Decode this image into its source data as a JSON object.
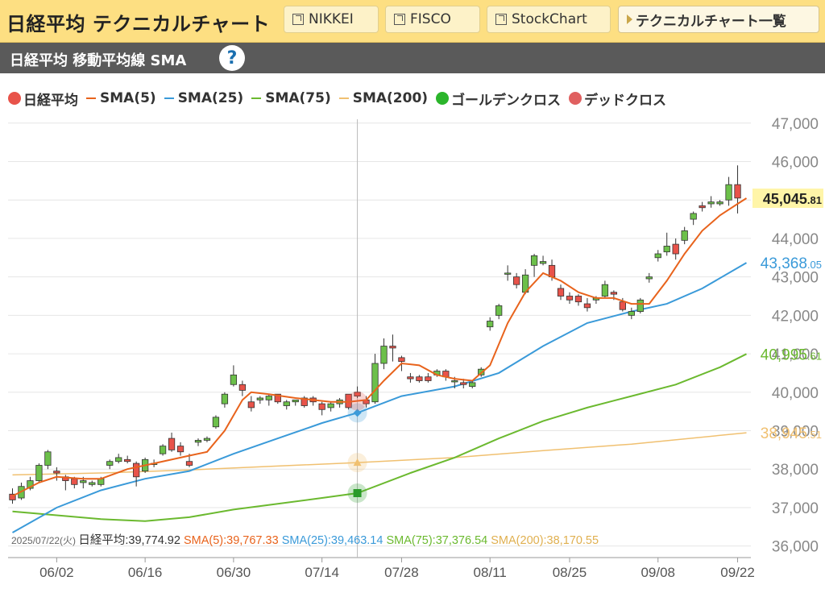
{
  "header": {
    "title": "日経平均 テクニカルチャート",
    "links": [
      "NIKKEI",
      "FISCO",
      "StockChart"
    ],
    "list_button": "テクニカルチャート一覧"
  },
  "subheader": {
    "title": "日経平均 移動平均線 SMA",
    "help": "?"
  },
  "legend": [
    {
      "label": "日経平均",
      "kind": "dot",
      "color": "#e8534a"
    },
    {
      "label": "SMA(5)",
      "kind": "line",
      "color": "#e8631c"
    },
    {
      "label": "SMA(25)",
      "kind": "line",
      "color": "#3a9ad9"
    },
    {
      "label": "SMA(75)",
      "kind": "line",
      "color": "#6bb92f"
    },
    {
      "label": "SMA(200)",
      "kind": "line",
      "color": "#f0c070"
    },
    {
      "label": "ゴールデンクロス",
      "kind": "dot",
      "color": "#2bb52b"
    },
    {
      "label": "デッドクロス",
      "kind": "dot",
      "color": "#e06060"
    }
  ],
  "tooltip": {
    "date": "2025/07/22(火)",
    "items": [
      {
        "label": "日経平均:39,774.92",
        "color": "#333333"
      },
      {
        "label": "SMA(5):39,767.33",
        "color": "#e8631c"
      },
      {
        "label": "SMA(25):39,463.14",
        "color": "#3a9ad9"
      },
      {
        "label": "SMA(75):37,376.54",
        "color": "#6bb92f"
      },
      {
        "label": "SMA(200):38,170.55",
        "color": "#e0b050"
      }
    ]
  },
  "chart_data": {
    "type": "candlestick",
    "ylim": [
      35700,
      47100
    ],
    "yticks": [
      "36,000",
      "37,000",
      "38,000",
      "39,000",
      "40,000",
      "41,000",
      "42,000",
      "43,000",
      "44,000",
      "45,000",
      "46,000",
      "47,000"
    ],
    "ytick_values": [
      36000,
      37000,
      38000,
      39000,
      40000,
      41000,
      42000,
      43000,
      44000,
      45000,
      46000,
      47000
    ],
    "xticks": [
      {
        "label": "06/02",
        "index": 5
      },
      {
        "label": "06/16",
        "index": 15
      },
      {
        "label": "06/30",
        "index": 25
      },
      {
        "label": "07/14",
        "index": 35
      },
      {
        "label": "07/28",
        "index": 44
      },
      {
        "label": "08/11",
        "index": 54
      },
      {
        "label": "08/25",
        "index": 63
      },
      {
        "label": "09/08",
        "index": 73
      },
      {
        "label": "09/22",
        "index": 82
      }
    ],
    "n_slots": 84,
    "candles": [
      [
        37350,
        37500,
        37100,
        37200
      ],
      [
        37250,
        37650,
        37200,
        37550
      ],
      [
        37500,
        37800,
        37450,
        37700
      ],
      [
        37700,
        38150,
        37650,
        38100
      ],
      [
        38100,
        38500,
        38000,
        38450
      ],
      [
        37950,
        38050,
        37700,
        37900
      ],
      [
        37800,
        37850,
        37450,
        37700
      ],
      [
        37750,
        37800,
        37500,
        37600
      ],
      [
        37650,
        37800,
        37500,
        37700
      ],
      [
        37600,
        37700,
        37550,
        37650
      ],
      [
        37600,
        37800,
        37550,
        37750
      ],
      [
        38100,
        38250,
        38000,
        38200
      ],
      [
        38200,
        38400,
        38150,
        38300
      ],
      [
        38250,
        38350,
        38150,
        38200
      ],
      [
        38150,
        38200,
        37550,
        37800
      ],
      [
        37950,
        38300,
        37900,
        38250
      ],
      [
        38150,
        38250,
        38050,
        38150
      ],
      [
        38400,
        38650,
        38350,
        38600
      ],
      [
        38800,
        38950,
        38450,
        38500
      ],
      [
        38600,
        38700,
        38350,
        38450
      ],
      [
        38200,
        38400,
        38050,
        38100
      ],
      [
        38700,
        38800,
        38600,
        38750
      ],
      [
        38750,
        38850,
        38700,
        38800
      ],
      [
        39100,
        39400,
        39050,
        39350
      ],
      [
        39700,
        40000,
        39600,
        39950
      ],
      [
        40200,
        40700,
        40150,
        40450
      ],
      [
        40200,
        40300,
        39900,
        40050
      ],
      [
        39750,
        39900,
        39500,
        39600
      ],
      [
        39800,
        39900,
        39700,
        39850
      ],
      [
        39800,
        39950,
        39650,
        39900
      ],
      [
        39950,
        39950,
        39700,
        39750
      ],
      [
        39650,
        39800,
        39550,
        39750
      ],
      [
        39750,
        39800,
        39650,
        39800
      ],
      [
        39850,
        39900,
        39600,
        39650
      ],
      [
        39850,
        39900,
        39650,
        39750
      ],
      [
        39700,
        39750,
        39400,
        39550
      ],
      [
        39600,
        39750,
        39500,
        39700
      ],
      [
        39700,
        39850,
        39600,
        39800
      ],
      [
        39950,
        39950,
        39550,
        39600
      ],
      [
        40000,
        40150,
        39850,
        39900
      ],
      [
        39800,
        39900,
        39600,
        39700
      ],
      [
        39750,
        41000,
        39700,
        40750
      ],
      [
        40750,
        41400,
        40600,
        41200
      ],
      [
        41200,
        41500,
        40800,
        41150
      ],
      [
        40900,
        40950,
        40550,
        40800
      ],
      [
        40400,
        40500,
        40250,
        40350
      ],
      [
        40400,
        40450,
        40250,
        40300
      ],
      [
        40400,
        40500,
        40250,
        40300
      ],
      [
        40450,
        40600,
        40400,
        40550
      ],
      [
        40550,
        40600,
        40300,
        40400
      ],
      [
        40300,
        40400,
        40100,
        40300
      ],
      [
        40250,
        40350,
        40100,
        40200
      ],
      [
        40150,
        40300,
        40100,
        40250
      ],
      [
        40450,
        40650,
        40400,
        40600
      ],
      [
        41700,
        41950,
        41600,
        41850
      ],
      [
        42000,
        42300,
        41900,
        42250
      ],
      [
        43100,
        43300,
        42900,
        43100
      ],
      [
        43000,
        43100,
        42700,
        42800
      ],
      [
        42600,
        43200,
        42550,
        43050
      ],
      [
        43300,
        43600,
        43000,
        43550
      ],
      [
        43350,
        43550,
        43300,
        43400
      ],
      [
        43300,
        43450,
        42900,
        43000
      ],
      [
        42700,
        42800,
        42400,
        42500
      ],
      [
        42500,
        42600,
        42300,
        42400
      ],
      [
        42500,
        42550,
        42250,
        42350
      ],
      [
        42300,
        42450,
        42100,
        42200
      ],
      [
        42400,
        42500,
        42300,
        42450
      ],
      [
        42500,
        42900,
        42450,
        42800
      ],
      [
        42600,
        42650,
        42400,
        42550
      ],
      [
        42350,
        42450,
        42100,
        42150
      ],
      [
        42000,
        42200,
        41900,
        42100
      ],
      [
        42100,
        42450,
        42050,
        42400
      ],
      [
        42950,
        43100,
        42850,
        43000
      ],
      [
        43500,
        43700,
        43400,
        43600
      ],
      [
        43650,
        44150,
        43550,
        43800
      ],
      [
        43850,
        44000,
        43450,
        43600
      ],
      [
        43950,
        44300,
        43850,
        44200
      ],
      [
        44500,
        44700,
        44350,
        44650
      ],
      [
        44850,
        44950,
        44700,
        44800
      ],
      [
        44900,
        45100,
        44800,
        44950
      ],
      [
        44900,
        45000,
        44850,
        44950
      ],
      [
        45000,
        45600,
        44850,
        45400
      ],
      [
        45400,
        45900,
        44650,
        45050
      ]
    ],
    "series": [
      {
        "name": "SMA(5)",
        "color": "#e8631c",
        "last": "45,045",
        "last_dec": ".81",
        "points": [
          [
            0,
            37300
          ],
          [
            3,
            37650
          ],
          [
            5,
            37800
          ],
          [
            8,
            37750
          ],
          [
            10,
            37750
          ],
          [
            13,
            38000
          ],
          [
            16,
            38150
          ],
          [
            20,
            38350
          ],
          [
            22,
            38450
          ],
          [
            24,
            39000
          ],
          [
            26,
            39800
          ],
          [
            27,
            40000
          ],
          [
            29,
            39950
          ],
          [
            32,
            39850
          ],
          [
            36,
            39750
          ],
          [
            38,
            39750
          ],
          [
            40,
            39800
          ],
          [
            42,
            40300
          ],
          [
            44,
            40750
          ],
          [
            46,
            40700
          ],
          [
            48,
            40450
          ],
          [
            50,
            40350
          ],
          [
            52,
            40300
          ],
          [
            54,
            40700
          ],
          [
            56,
            41800
          ],
          [
            58,
            42600
          ],
          [
            60,
            43100
          ],
          [
            62,
            42900
          ],
          [
            64,
            42600
          ],
          [
            66,
            42450
          ],
          [
            68,
            42450
          ],
          [
            70,
            42300
          ],
          [
            72,
            42300
          ],
          [
            74,
            42900
          ],
          [
            76,
            43600
          ],
          [
            78,
            44200
          ],
          [
            80,
            44600
          ],
          [
            82,
            44900
          ],
          [
            83,
            45045.81
          ]
        ]
      },
      {
        "name": "SMA(25)",
        "color": "#3a9ad9",
        "last": "43,368",
        "last_dec": ".05",
        "points": [
          [
            0,
            36350
          ],
          [
            5,
            37000
          ],
          [
            10,
            37450
          ],
          [
            15,
            37750
          ],
          [
            20,
            37950
          ],
          [
            25,
            38400
          ],
          [
            30,
            38800
          ],
          [
            35,
            39200
          ],
          [
            38,
            39400
          ],
          [
            39,
            39463.14
          ],
          [
            44,
            39900
          ],
          [
            50,
            40150
          ],
          [
            55,
            40500
          ],
          [
            60,
            41200
          ],
          [
            65,
            41800
          ],
          [
            70,
            42100
          ],
          [
            74,
            42300
          ],
          [
            78,
            42700
          ],
          [
            83,
            43368.05
          ]
        ]
      },
      {
        "name": "SMA(75)",
        "color": "#6bb92f",
        "last": "40,995",
        "last_dec": ".61",
        "points": [
          [
            0,
            36900
          ],
          [
            5,
            36800
          ],
          [
            10,
            36700
          ],
          [
            15,
            36650
          ],
          [
            20,
            36750
          ],
          [
            25,
            36950
          ],
          [
            30,
            37100
          ],
          [
            35,
            37250
          ],
          [
            39,
            37376.54
          ],
          [
            45,
            37900
          ],
          [
            50,
            38300
          ],
          [
            55,
            38800
          ],
          [
            60,
            39250
          ],
          [
            65,
            39600
          ],
          [
            70,
            39900
          ],
          [
            75,
            40200
          ],
          [
            80,
            40650
          ],
          [
            83,
            40995.61
          ]
        ]
      },
      {
        "name": "SMA(200)",
        "color": "#f0c070",
        "last": "38,945",
        "last_dec": ".51",
        "points": [
          [
            0,
            37850
          ],
          [
            10,
            37900
          ],
          [
            20,
            37980
          ],
          [
            30,
            38080
          ],
          [
            39,
            38170.55
          ],
          [
            50,
            38300
          ],
          [
            60,
            38480
          ],
          [
            70,
            38650
          ],
          [
            83,
            38945.51
          ]
        ]
      }
    ],
    "cross_index": 39,
    "cross_markers": [
      {
        "series": "SMA(25)",
        "value": 39463.14,
        "color": "#3a9ad9",
        "shape": "diamond"
      },
      {
        "series": "SMA(200)",
        "value": 38170.55,
        "color": "#f0c070",
        "shape": "triangle"
      },
      {
        "series": "SMA(75)",
        "value": 37376.54,
        "color": "#2a9a2a",
        "shape": "square"
      }
    ]
  }
}
